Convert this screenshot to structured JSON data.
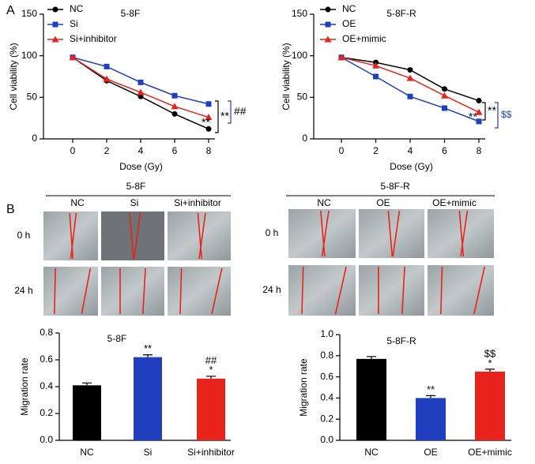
{
  "panel_labels": [
    "A",
    "B"
  ],
  "chart_data": [
    {
      "type": "line",
      "title": "5-8F",
      "x_label": "Dose (Gy)",
      "y_label": "Cell viability (%)",
      "x": [
        0,
        2,
        4,
        6,
        8
      ],
      "xlim": [
        0,
        8
      ],
      "xticks": [
        0,
        2,
        4,
        6,
        8
      ],
      "ylim": [
        0,
        150
      ],
      "yticks": [
        0,
        50,
        100,
        150
      ],
      "series": [
        {
          "name": "NC",
          "color": "#000000",
          "marker": "circle",
          "values": [
            98,
            70,
            51,
            30,
            12
          ]
        },
        {
          "name": "Si",
          "color": "#1f3fbf",
          "marker": "square",
          "values": [
            98,
            87,
            68,
            52,
            42
          ]
        },
        {
          "name": "Si+inhibitor",
          "color": "#e8231c",
          "marker": "triangle",
          "values": [
            98,
            72,
            56,
            39,
            26
          ]
        }
      ],
      "annotations": [
        "**",
        "**",
        "##"
      ]
    },
    {
      "type": "line",
      "title": "5-8F-R",
      "x_label": "Dose (Gy)",
      "y_label": "Cell viability (%)",
      "x": [
        0,
        2,
        4,
        6,
        8
      ],
      "xlim": [
        0,
        8
      ],
      "xticks": [
        0,
        2,
        4,
        6,
        8
      ],
      "ylim": [
        0,
        150
      ],
      "yticks": [
        0,
        50,
        100,
        150
      ],
      "series": [
        {
          "name": "NC",
          "color": "#000000",
          "marker": "circle",
          "values": [
            98,
            92,
            83,
            60,
            46
          ]
        },
        {
          "name": "OE",
          "color": "#1f3fbf",
          "marker": "square",
          "values": [
            98,
            75,
            51,
            37,
            21
          ]
        },
        {
          "name": "OE+mimic",
          "color": "#e8231c",
          "marker": "triangle",
          "values": [
            98,
            88,
            73,
            52,
            32
          ]
        }
      ],
      "annotations": [
        "**",
        "**",
        "$$"
      ]
    },
    {
      "type": "bar",
      "title": "5-8F",
      "y_label": "Migration rate",
      "categories": [
        "NC",
        "Si",
        "Si+inhibitor"
      ],
      "values": [
        0.41,
        0.62,
        0.46
      ],
      "colors": [
        "#000000",
        "#1f3fbf",
        "#e8231c"
      ],
      "ylim": [
        0,
        0.8
      ],
      "yticks": [
        {
          "value": 0,
          "label": "0.0"
        },
        0.2,
        0.4,
        0.6,
        0.8
      ],
      "significance": [
        null,
        [
          "**"
        ],
        [
          "##",
          "*"
        ]
      ]
    },
    {
      "type": "bar",
      "title": "5-8F-R",
      "y_label": "Migration rate",
      "categories": [
        "NC",
        "OE",
        "OE+mimic"
      ],
      "values": [
        0.77,
        0.4,
        0.65
      ],
      "colors": [
        "#000000",
        "#1f3fbf",
        "#e8231c"
      ],
      "ylim": [
        0,
        1.0
      ],
      "yticks": [
        {
          "value": 0,
          "label": "0.0"
        },
        0.2,
        0.4,
        0.6,
        0.8,
        {
          "value": 1,
          "label": "1.0"
        }
      ],
      "significance": [
        null,
        [
          "**"
        ],
        [
          "$$",
          "*"
        ]
      ]
    }
  ],
  "wound_healing": {
    "rows": [
      "0 h",
      "24 h"
    ],
    "groups": [
      {
        "title": "5-8F",
        "columns": [
          "NC",
          "Si",
          "Si+inhibitor"
        ]
      },
      {
        "title": "5-8F-R",
        "columns": [
          "NC",
          "OE",
          "OE+mimic"
        ]
      }
    ]
  }
}
